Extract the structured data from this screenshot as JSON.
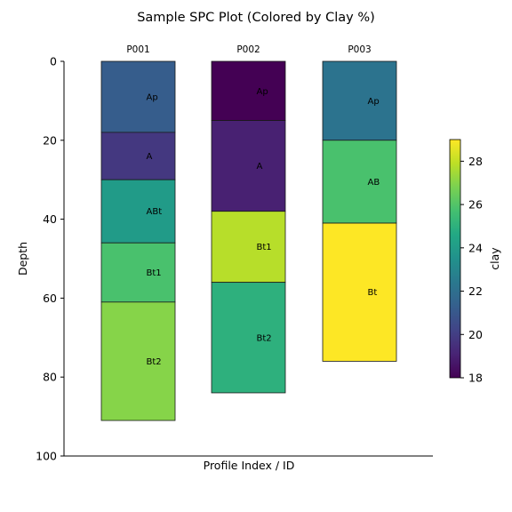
{
  "chart_data": {
    "type": "bar",
    "title": "Sample SPC Plot (Colored by Clay %)",
    "xlabel": "Profile Index / ID",
    "ylabel": "Depth",
    "ylim": [
      100,
      0
    ],
    "yticks": [
      0,
      20,
      40,
      60,
      80,
      100
    ],
    "grid": false,
    "profiles": [
      {
        "id": "P001",
        "horizons": [
          {
            "name": "Ap",
            "top": 0,
            "bottom": 18,
            "clay": 21.2
          },
          {
            "name": "A",
            "top": 18,
            "bottom": 30,
            "clay": 19.8
          },
          {
            "name": "ABt",
            "top": 30,
            "bottom": 46,
            "clay": 24.0
          },
          {
            "name": "Bt1",
            "top": 46,
            "bottom": 61,
            "clay": 25.8
          },
          {
            "name": "Bt2",
            "top": 61,
            "bottom": 91,
            "clay": 27.0
          }
        ]
      },
      {
        "id": "P002",
        "horizons": [
          {
            "name": "Ap",
            "top": 0,
            "bottom": 15,
            "clay": 18.0
          },
          {
            "name": "A",
            "top": 15,
            "bottom": 38,
            "clay": 19.0
          },
          {
            "name": "Bt1",
            "top": 38,
            "bottom": 56,
            "clay": 27.8
          },
          {
            "name": "Bt2",
            "top": 56,
            "bottom": 84,
            "clay": 25.0
          }
        ]
      },
      {
        "id": "P003",
        "horizons": [
          {
            "name": "Ap",
            "top": 0,
            "bottom": 20,
            "clay": 22.2
          },
          {
            "name": "AB",
            "top": 20,
            "bottom": 41,
            "clay": 25.8
          },
          {
            "name": "Bt",
            "top": 41,
            "bottom": 76,
            "clay": 29.0
          }
        ]
      }
    ],
    "colorbar": {
      "label": "clay",
      "colormap": "viridis",
      "min": 18,
      "max": 29,
      "ticks": [
        18,
        20,
        22,
        24,
        26,
        28
      ]
    }
  }
}
